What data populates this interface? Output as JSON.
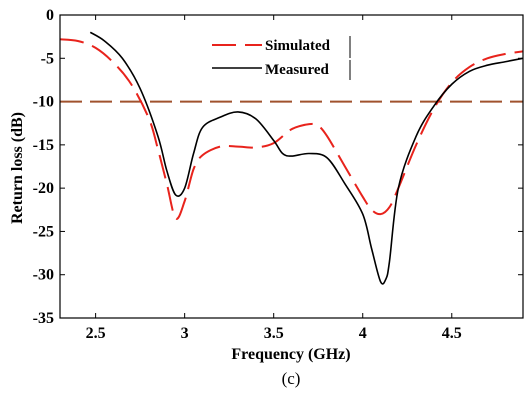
{
  "chart_data": {
    "type": "line",
    "title": "",
    "xlabel": "Frequency (GHz)",
    "ylabel": "Return loss (dB)",
    "caption": "(c)",
    "xlim": [
      2.3,
      4.9
    ],
    "ylim": [
      -35,
      0
    ],
    "xticks": [
      2.5,
      3,
      3.5,
      4,
      4.5
    ],
    "xtick_labels": [
      "2.5",
      "3",
      "3.5",
      "4",
      "4.5"
    ],
    "yticks": [
      0,
      -5,
      -10,
      -15,
      -20,
      -25,
      -30,
      -35
    ],
    "ytick_labels": [
      "0",
      "-5",
      "-10",
      "-15",
      "-20",
      "-25",
      "-30",
      "-35"
    ],
    "legend_position": "top-center",
    "grid": false,
    "reference_line": {
      "y": -10,
      "color": "#a0522d",
      "style": "dashed"
    },
    "series": [
      {
        "name": "Simulated",
        "color": "#e8231c",
        "style": "dashed",
        "x": [
          2.3,
          2.4,
          2.5,
          2.6,
          2.7,
          2.8,
          2.85,
          2.9,
          2.95,
          3.0,
          3.05,
          3.1,
          3.2,
          3.3,
          3.4,
          3.5,
          3.6,
          3.7,
          3.75,
          3.8,
          3.9,
          4.0,
          4.05,
          4.1,
          4.15,
          4.2,
          4.3,
          4.4,
          4.5,
          4.6,
          4.7,
          4.8,
          4.9
        ],
        "y": [
          -2.8,
          -3.0,
          -3.8,
          -5.5,
          -8.0,
          -12.0,
          -15.5,
          -19.5,
          -23.5,
          -21.5,
          -17.8,
          -16.2,
          -15.2,
          -15.2,
          -15.3,
          -14.8,
          -13.2,
          -12.6,
          -12.8,
          -14.0,
          -17.5,
          -21.0,
          -22.5,
          -23.0,
          -22.2,
          -20.0,
          -15.0,
          -10.8,
          -7.8,
          -6.0,
          -5.0,
          -4.5,
          -4.2
        ]
      },
      {
        "name": "Measured",
        "color": "#000000",
        "style": "solid",
        "x": [
          2.47,
          2.55,
          2.65,
          2.75,
          2.85,
          2.9,
          2.95,
          3.0,
          3.05,
          3.1,
          3.2,
          3.3,
          3.4,
          3.5,
          3.55,
          3.6,
          3.7,
          3.8,
          3.9,
          4.0,
          4.05,
          4.1,
          4.13,
          4.15,
          4.2,
          4.3,
          4.4,
          4.5,
          4.6,
          4.7,
          4.8,
          4.9
        ],
        "y": [
          -2.0,
          -3.0,
          -5.0,
          -8.5,
          -14.0,
          -18.0,
          -20.8,
          -20.0,
          -16.0,
          -13.0,
          -11.8,
          -11.2,
          -12.0,
          -14.5,
          -16.0,
          -16.3,
          -16.0,
          -16.5,
          -19.5,
          -23.0,
          -27.0,
          -30.8,
          -30.5,
          -28.5,
          -20.0,
          -14.0,
          -10.5,
          -8.0,
          -6.5,
          -5.8,
          -5.4,
          -5.0
        ]
      }
    ]
  }
}
